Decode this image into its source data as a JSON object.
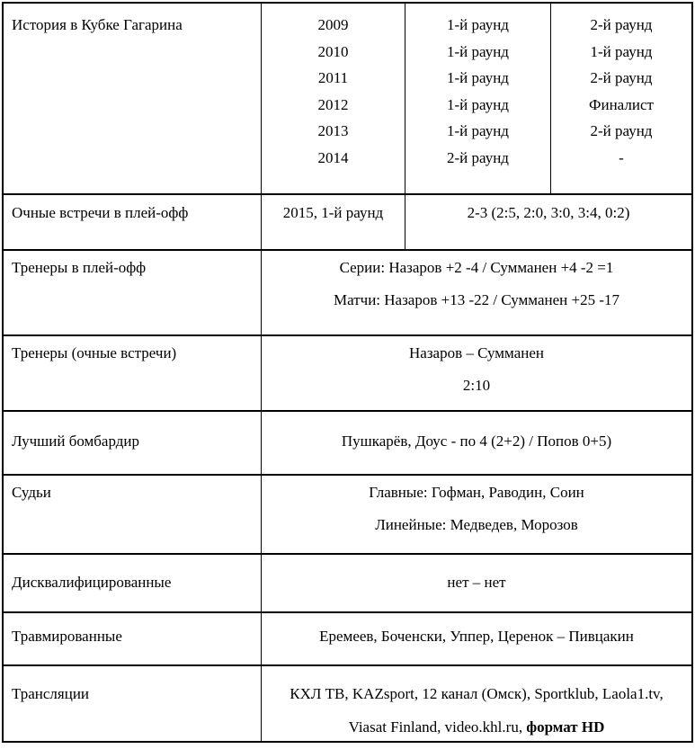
{
  "page": {
    "background_color": "#ffffff",
    "border_color": "#000000",
    "text_color": "#000000"
  },
  "table": {
    "rows": [
      {
        "kind": "history",
        "name": "row-gagarin-cup-history",
        "label": "История в Кубке Гагарина",
        "cells": [
          {
            "name": "years",
            "lines": [
              "2009",
              "2010",
              "2011",
              "2012",
              "2013",
              "2014"
            ]
          },
          {
            "name": "rounds-team-one",
            "lines": [
              "1-й раунд",
              "1-й раунд",
              "1-й раунд",
              "1-й раунд",
              "1-й раунд",
              "2-й раунд"
            ]
          },
          {
            "name": "rounds-team-two",
            "lines": [
              "2-й раунд",
              "1-й раунд",
              "2-й раунд",
              "Финалист",
              "2-й раунд",
              "-"
            ]
          }
        ]
      },
      {
        "kind": "h2h",
        "name": "row-playoff-head-to-head",
        "label": "Очные встречи в плей-офф",
        "cells": [
          {
            "name": "h2h-season",
            "lines": [
              "2015, 1-й раунд"
            ]
          },
          {
            "name": "h2h-score",
            "lines": [
              "2-3 (2:5, 2:0, 3:0, 3:4, 0:2)"
            ]
          }
        ]
      },
      {
        "kind": "coaches",
        "name": "row-coaches-playoffs",
        "label": "Тренеры в плей-офф",
        "cells": [
          {
            "name": "coaches-record",
            "lines": [
              "Серии: Назаров +2 -4 / Сумманен +4 -2 =1",
              "Матчи: Назаров +13 -22 / Сумманен +25 -17"
            ]
          }
        ]
      },
      {
        "kind": "coaches-h2h",
        "name": "row-coaches-head-to-head",
        "label": "Тренеры (очные встречи)",
        "cells": [
          {
            "name": "coaches-h2h-result",
            "lines": [
              "Назаров – Сумманен",
              "2:10"
            ]
          }
        ]
      },
      {
        "kind": "scorer",
        "name": "row-top-scorer",
        "label": "Лучший бомбардир",
        "cells": [
          {
            "name": "top-scorers",
            "lines": [
              "Пушкарёв, Доус - по 4 (2+2) / Попов 0+5)"
            ]
          }
        ]
      },
      {
        "kind": "referees",
        "name": "row-referees",
        "label": "Судьи",
        "cells": [
          {
            "name": "referees-list",
            "lines": [
              "Главные: Гофман, Раводин, Соин",
              "Линейные: Медведев, Морозов"
            ]
          }
        ]
      },
      {
        "kind": "disq",
        "name": "row-disqualified",
        "label": "Дисквалифицированные",
        "cells": [
          {
            "name": "disqualified-players",
            "lines": [
              "нет – нет"
            ]
          }
        ]
      },
      {
        "kind": "injured",
        "name": "row-injured",
        "label": "Травмированные",
        "cells": [
          {
            "name": "injured-players",
            "lines": [
              "Еремеев, Боченски, Уппер, Церенок – Пивцакин"
            ]
          }
        ]
      },
      {
        "kind": "broadcasts",
        "name": "row-broadcasts",
        "label": "Трансляции",
        "cells": [
          {
            "name": "broadcast-list",
            "lines": [
              "КХЛ ТВ, KAZsport, 12 канал (Омск), Sportklub, Laola1.tv,",
              [
                {
                  "text": "Viasat Finland, video.khl.ru, ",
                  "bold": false
                },
                {
                  "text": "формат HD",
                  "bold": true
                }
              ]
            ]
          }
        ]
      }
    ]
  }
}
